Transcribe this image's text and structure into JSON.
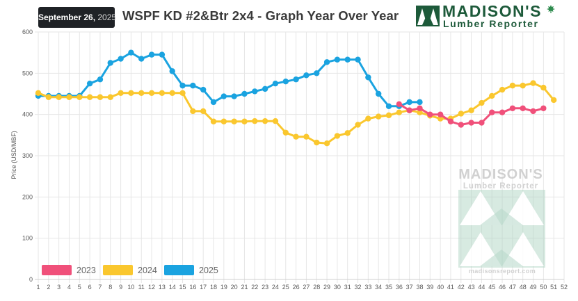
{
  "header": {
    "date_month_day": "September 26,",
    "date_year": " 2025",
    "title": "WSPF KD #2&Btr 2x4 - Graph Year Over Year"
  },
  "logo": {
    "line1": "MADISON'S",
    "line2": "Lumber Reporter"
  },
  "watermark": {
    "line1": "MADISON'S",
    "line2": "Lumber Reporter",
    "url": "madisonsreport.com"
  },
  "chart_data": {
    "type": "line",
    "title": "WSPF KD #2&Btr 2x4 - Graph Year Over Year",
    "xlabel": "",
    "ylabel": "Price (USD/MBF)",
    "x": [
      1,
      2,
      3,
      4,
      5,
      6,
      7,
      8,
      9,
      10,
      11,
      12,
      13,
      14,
      15,
      16,
      17,
      18,
      19,
      20,
      21,
      22,
      23,
      24,
      25,
      26,
      27,
      28,
      29,
      30,
      31,
      32,
      33,
      34,
      35,
      36,
      37,
      38,
      39,
      40,
      41,
      42,
      43,
      44,
      45,
      46,
      47,
      48,
      49,
      50,
      51,
      52
    ],
    "xlim": [
      1,
      52
    ],
    "ylim": [
      0,
      600
    ],
    "yticks": [
      0,
      100,
      200,
      300,
      400,
      500,
      600
    ],
    "grid": true,
    "legend_position": "bottom-left",
    "series": [
      {
        "name": "2023",
        "color": "#f0507a",
        "points": [
          [
            36,
            425
          ],
          [
            37,
            410
          ],
          [
            38,
            415
          ],
          [
            39,
            400
          ],
          [
            40,
            400
          ],
          [
            41,
            383
          ],
          [
            42,
            375
          ],
          [
            43,
            380
          ],
          [
            44,
            380
          ],
          [
            45,
            405
          ],
          [
            46,
            405
          ],
          [
            47,
            415
          ],
          [
            48,
            415
          ],
          [
            49,
            408
          ],
          [
            50,
            415
          ]
        ]
      },
      {
        "name": "2024",
        "color": "#fac72e",
        "points": [
          [
            1,
            452
          ],
          [
            2,
            442
          ],
          [
            3,
            442
          ],
          [
            4,
            442
          ],
          [
            5,
            442
          ],
          [
            6,
            442
          ],
          [
            7,
            442
          ],
          [
            8,
            442
          ],
          [
            9,
            452
          ],
          [
            10,
            452
          ],
          [
            11,
            452
          ],
          [
            12,
            452
          ],
          [
            13,
            452
          ],
          [
            14,
            452
          ],
          [
            15,
            452
          ],
          [
            16,
            408
          ],
          [
            17,
            408
          ],
          [
            18,
            383
          ],
          [
            19,
            383
          ],
          [
            20,
            383
          ],
          [
            21,
            383
          ],
          [
            22,
            384
          ],
          [
            23,
            384
          ],
          [
            24,
            384
          ],
          [
            25,
            356
          ],
          [
            26,
            346
          ],
          [
            27,
            346
          ],
          [
            28,
            332
          ],
          [
            29,
            330
          ],
          [
            30,
            348
          ],
          [
            31,
            355
          ],
          [
            32,
            375
          ],
          [
            33,
            390
          ],
          [
            34,
            395
          ],
          [
            35,
            398
          ],
          [
            36,
            405
          ],
          [
            37,
            410
          ],
          [
            38,
            405
          ],
          [
            39,
            397
          ],
          [
            40,
            390
          ],
          [
            41,
            390
          ],
          [
            42,
            402
          ],
          [
            43,
            410
          ],
          [
            44,
            428
          ],
          [
            45,
            445
          ],
          [
            46,
            460
          ],
          [
            47,
            470
          ],
          [
            48,
            470
          ],
          [
            49,
            476
          ],
          [
            50,
            465
          ],
          [
            51,
            435
          ]
        ]
      },
      {
        "name": "2025",
        "color": "#1aa3e0",
        "points": [
          [
            1,
            445
          ],
          [
            2,
            445
          ],
          [
            3,
            445
          ],
          [
            4,
            445
          ],
          [
            5,
            445
          ],
          [
            6,
            475
          ],
          [
            7,
            485
          ],
          [
            8,
            525
          ],
          [
            9,
            535
          ],
          [
            10,
            550
          ],
          [
            11,
            535
          ],
          [
            12,
            545
          ],
          [
            13,
            545
          ],
          [
            14,
            505
          ],
          [
            15,
            470
          ],
          [
            16,
            470
          ],
          [
            17,
            460
          ],
          [
            18,
            430
          ],
          [
            19,
            444
          ],
          [
            20,
            444
          ],
          [
            21,
            450
          ],
          [
            22,
            456
          ],
          [
            23,
            462
          ],
          [
            24,
            475
          ],
          [
            25,
            480
          ],
          [
            26,
            485
          ],
          [
            27,
            495
          ],
          [
            28,
            500
          ],
          [
            29,
            527
          ],
          [
            30,
            533
          ],
          [
            31,
            533
          ],
          [
            32,
            533
          ],
          [
            33,
            490
          ],
          [
            34,
            450
          ],
          [
            35,
            420
          ],
          [
            36,
            420
          ],
          [
            37,
            430
          ],
          [
            38,
            430
          ]
        ]
      }
    ]
  }
}
